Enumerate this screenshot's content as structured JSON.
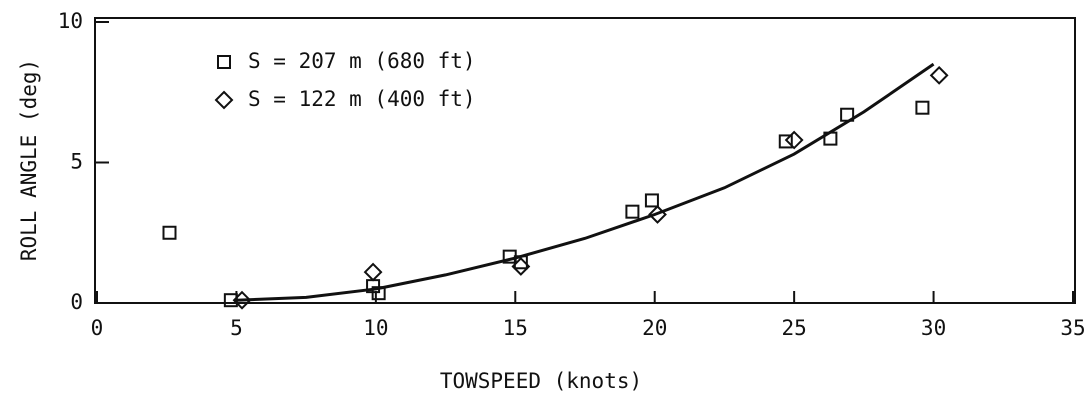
{
  "chart_data": {
    "type": "scatter",
    "xlabel": "TOWSPEED (knots)",
    "ylabel": "ROLL ANGLE (deg)",
    "xlim": [
      0,
      35
    ],
    "ylim": [
      0,
      10
    ],
    "xticks": [
      0,
      5,
      10,
      15,
      20,
      25,
      30,
      35
    ],
    "yticks": [
      0,
      5,
      10
    ],
    "color": "#111111",
    "series": [
      {
        "name": "S = 207 m (680 ft)",
        "marker": "square",
        "x": [
          2.6,
          4.8,
          9.9,
          10.1,
          14.8,
          15.2,
          19.2,
          19.9,
          24.7,
          26.3,
          26.9,
          29.6
        ],
        "values": [
          2.5,
          0.1,
          0.6,
          0.35,
          1.65,
          1.45,
          3.25,
          3.65,
          5.75,
          5.85,
          6.7,
          6.95
        ]
      },
      {
        "name": "S = 122 m (400 ft)",
        "marker": "diamond",
        "x": [
          5.2,
          9.9,
          15.2,
          20.1,
          25.0,
          30.2
        ],
        "values": [
          0.1,
          1.1,
          1.3,
          3.15,
          5.8,
          8.1
        ]
      }
    ],
    "fit": {
      "x": [
        5,
        7.5,
        10,
        12.5,
        15,
        17.5,
        20,
        22.5,
        25,
        27.5,
        30
      ],
      "values": [
        0.1,
        0.2,
        0.5,
        1.0,
        1.6,
        2.3,
        3.15,
        4.1,
        5.3,
        6.8,
        8.5
      ]
    }
  }
}
